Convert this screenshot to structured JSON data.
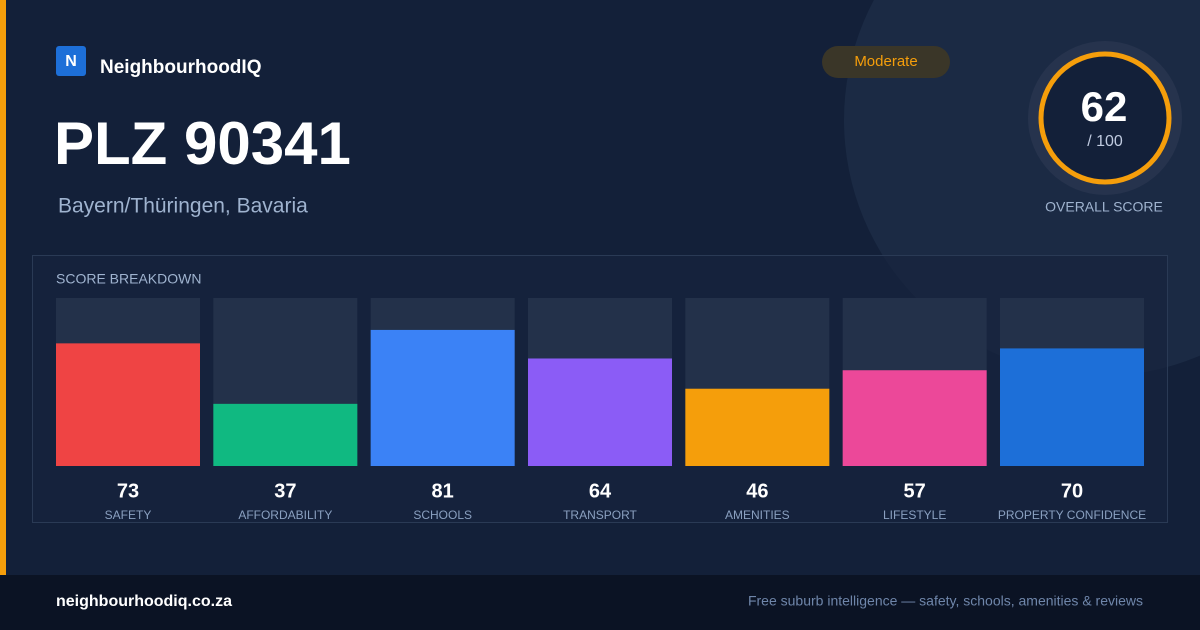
{
  "header": {
    "logo": "N",
    "brand": "NeighbourhoodIQ",
    "badge": "Moderate",
    "title": "PLZ 90341",
    "subtitle": "Bayern/Thüringen, Bavaria"
  },
  "score": {
    "value": 62,
    "max_label": "/ 100",
    "label": "OVERALL SCORE"
  },
  "chart_data": {
    "type": "bar",
    "title": "SCORE BREAKDOWN",
    "categories": [
      "SAFETY",
      "AFFORDABILITY",
      "SCHOOLS",
      "TRANSPORT",
      "AMENITIES",
      "LIFESTYLE",
      "PROPERTY CONFIDENCE"
    ],
    "values": [
      73,
      37,
      81,
      64,
      46,
      57,
      70
    ],
    "colors": [
      "#ef4444",
      "#10b981",
      "#3b82f6",
      "#8b5cf6",
      "#f59e0b",
      "#ec4899",
      "#1d6fd8"
    ],
    "ylim": [
      0,
      100
    ]
  },
  "footer": {
    "site": "neighbourhoodiq.co.za",
    "tagline": "Free suburb intelligence — safety, schools, amenities & reviews"
  }
}
